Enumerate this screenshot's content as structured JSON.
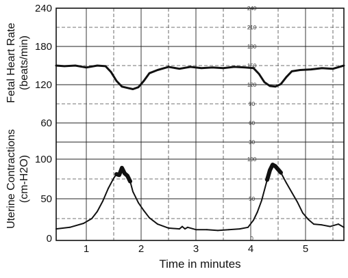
{
  "chart_data": [
    {
      "type": "line",
      "panel": "top",
      "title": "",
      "ylabel_lines": [
        "Fetal Heart Rate",
        "(beats/min)"
      ],
      "xlabel": "Time in minutes",
      "ylim": [
        30,
        240
      ],
      "yticks": [
        60,
        120,
        180,
        240
      ],
      "inner_tick_labels": [
        "240",
        "210",
        "180",
        "150",
        "120",
        "90",
        "60",
        "30"
      ],
      "xlim": [
        0.45,
        5.7
      ],
      "xticks": [
        1,
        2,
        3,
        4,
        5
      ],
      "grid": true,
      "series": [
        {
          "x": [
            0.45,
            0.6,
            0.8,
            1.0,
            1.2,
            1.35,
            1.45,
            1.55,
            1.65,
            1.75,
            1.85,
            1.95,
            2.05,
            2.15,
            2.3,
            2.5,
            2.7,
            2.9,
            3.1,
            3.3,
            3.5,
            3.7,
            3.9,
            4.05,
            4.15,
            4.25,
            4.35,
            4.45,
            4.55,
            4.65,
            4.75,
            4.9,
            5.1,
            5.3,
            5.5,
            5.7
          ],
          "y": [
            150,
            149,
            150,
            147,
            150,
            149,
            140,
            126,
            117,
            115,
            113,
            116,
            126,
            138,
            143,
            148,
            145,
            148,
            146,
            147,
            146,
            148,
            147,
            146,
            137,
            124,
            118,
            117,
            121,
            132,
            141,
            143,
            144,
            146,
            145,
            150
          ]
        }
      ]
    },
    {
      "type": "line",
      "panel": "bottom",
      "ylabel_lines": [
        "Uterine Contractions",
        "(cm-H2O)"
      ],
      "ylabel_sub": "2",
      "xlabel": "Time in minutes",
      "ylim": [
        0,
        100
      ],
      "yticks": [
        0,
        50,
        100
      ],
      "inner_tick_labels": [
        "100",
        "50",
        "0"
      ],
      "xlim": [
        0.45,
        5.7
      ],
      "xticks": [
        1,
        2,
        3,
        4,
        5
      ],
      "grid": true,
      "series": [
        {
          "x": [
            0.45,
            0.7,
            0.95,
            1.1,
            1.2,
            1.3,
            1.4,
            1.5,
            1.55,
            1.6,
            1.65,
            1.7,
            1.75,
            1.8,
            1.85,
            1.95,
            2.05,
            2.15,
            2.3,
            2.5,
            2.7,
            2.75,
            2.8,
            2.85,
            3.0,
            3.2,
            3.4,
            3.6,
            3.8,
            3.95,
            4.05,
            4.12,
            4.2,
            4.3,
            4.35,
            4.4,
            4.45,
            4.5,
            4.55,
            4.65,
            4.75,
            4.85,
            4.95,
            5.05,
            5.15,
            5.3,
            5.45,
            5.6,
            5.7
          ],
          "y": [
            12,
            14,
            19,
            25,
            34,
            47,
            63,
            76,
            81,
            80,
            89,
            82,
            79,
            72,
            59,
            45,
            35,
            26,
            18,
            13,
            12,
            15,
            12,
            14,
            11,
            11,
            10,
            11,
            12,
            14,
            23,
            33,
            48,
            74,
            86,
            93,
            91,
            87,
            83,
            70,
            58,
            46,
            32,
            24,
            18,
            17,
            15,
            18,
            14
          ]
        }
      ]
    }
  ]
}
